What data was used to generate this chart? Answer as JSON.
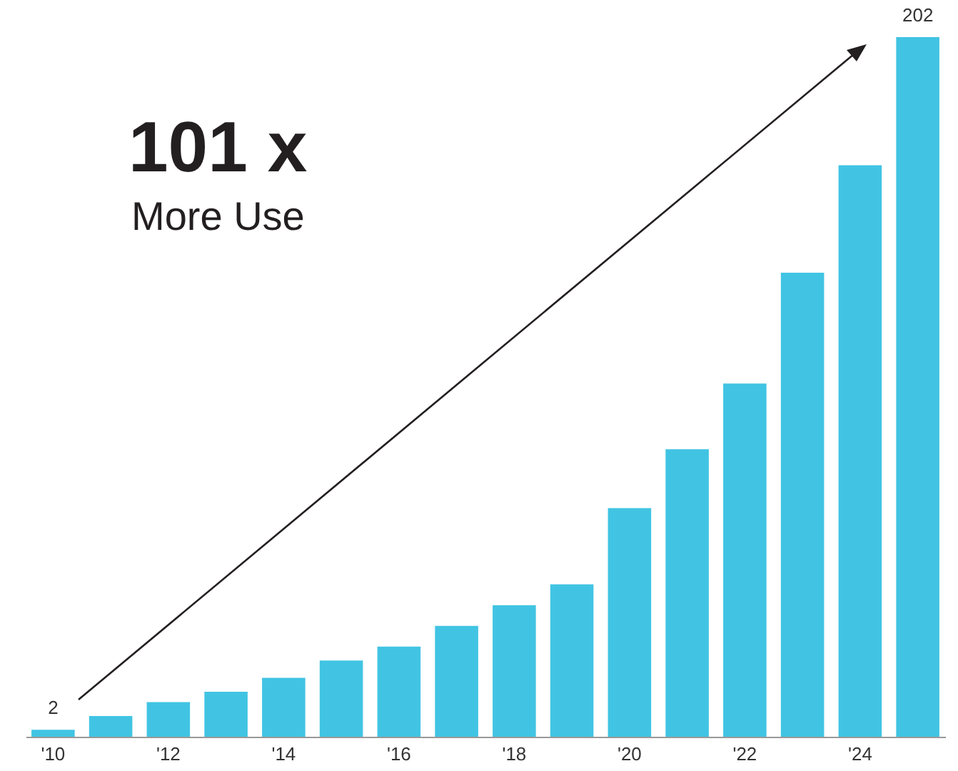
{
  "chart_data": {
    "type": "bar",
    "annotations": [
      "101 x",
      "More Use"
    ],
    "categories": [
      "'10",
      null,
      "'12",
      null,
      "'14",
      null,
      "'16",
      null,
      "'18",
      null,
      "'20",
      null,
      "'22",
      null,
      "'24",
      null
    ],
    "values": [
      2,
      6,
      10,
      13,
      17,
      22,
      26,
      32,
      38,
      44,
      66,
      83,
      102,
      134,
      165,
      202
    ],
    "value_labels": [
      "2",
      null,
      null,
      null,
      null,
      null,
      null,
      null,
      null,
      null,
      null,
      null,
      null,
      null,
      null,
      "202"
    ],
    "color": "#41c4e3"
  }
}
